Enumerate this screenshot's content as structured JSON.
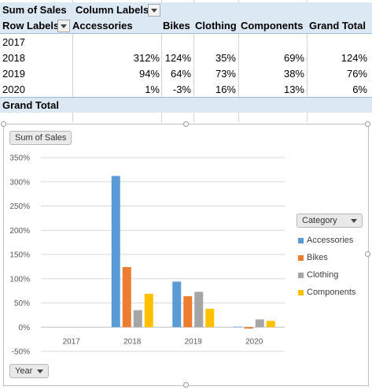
{
  "pivot": {
    "title": "Sum of Sales",
    "column_labels": "Column Labels",
    "row_labels": "Row Labels",
    "columns": [
      "Accessories",
      "Bikes",
      "Clothing",
      "Components",
      "Grand Total"
    ],
    "rows": [
      {
        "label": "2017",
        "cells": [
          "",
          "",
          "",
          "",
          ""
        ]
      },
      {
        "label": "2018",
        "cells": [
          "312%",
          "124%",
          "35%",
          "69%",
          "124%"
        ]
      },
      {
        "label": "2019",
        "cells": [
          "94%",
          "64%",
          "73%",
          "38%",
          "76%"
        ]
      },
      {
        "label": "2020",
        "cells": [
          "1%",
          "-3%",
          "16%",
          "13%",
          "6%"
        ]
      }
    ],
    "grand_total_label": "Grand Total"
  },
  "chart_buttons": {
    "value_field": "Sum of Sales",
    "axis_field": "Year",
    "legend_field": "Category"
  },
  "colors": {
    "accessories": "#5b9bd5",
    "bikes": "#ed7d31",
    "clothing": "#a5a5a5",
    "components": "#ffc000",
    "header_band": "#dde8f5"
  },
  "chart_data": {
    "type": "bar",
    "categories": [
      "2017",
      "2018",
      "2019",
      "2020"
    ],
    "series": [
      {
        "name": "Accessories",
        "values": [
          null,
          312,
          94,
          1
        ]
      },
      {
        "name": "Bikes",
        "values": [
          null,
          124,
          64,
          -3
        ]
      },
      {
        "name": "Clothing",
        "values": [
          null,
          35,
          73,
          16
        ]
      },
      {
        "name": "Components",
        "values": [
          null,
          69,
          38,
          13
        ]
      }
    ],
    "yticks": [
      "350%",
      "300%",
      "250%",
      "200%",
      "150%",
      "100%",
      "50%",
      "0%",
      "-50%"
    ],
    "ylim": [
      -50,
      350
    ],
    "grid": true,
    "legend": "right",
    "title": "",
    "xlabel": "",
    "ylabel": ""
  }
}
